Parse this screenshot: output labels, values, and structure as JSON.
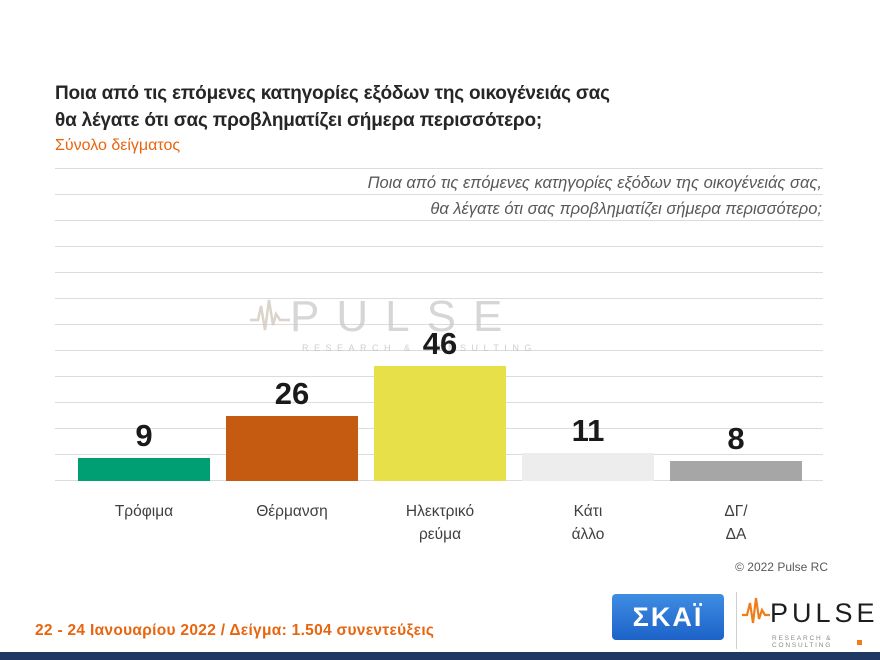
{
  "header": {
    "title_line1": "Ποια από τις επόμενες κατηγορίες εξόδων της οικογένειάς σας",
    "title_line2": "θα λέγατε ότι σας προβληματίζει σήμερα περισσότερο;",
    "subtitle": "Σύνολο δείγματος"
  },
  "overlay_question": {
    "line1": "Ποια από τις επόμενες κατηγορίες εξόδων της οικογένειάς σας,",
    "line2": "θα λέγατε ότι σας προβληματίζει σήμερα περισσότερο;"
  },
  "chart_data": {
    "type": "bar",
    "title": "Σύνολο δείγματος",
    "categories": [
      "Τρόφιμα",
      "Θέρμανση",
      "Ηλεκτρικό ρεύμα",
      "Κάτι άλλο",
      "ΔΓ/ΔΑ"
    ],
    "category_label_lines": [
      [
        "Τρόφιμα"
      ],
      [
        "Θέρμανση"
      ],
      [
        "Ηλεκτρικό",
        "ρεύμα"
      ],
      [
        "Κάτι",
        "άλλο"
      ],
      [
        "ΔΓ/",
        "ΔΑ"
      ]
    ],
    "values": [
      9,
      26,
      46,
      11,
      8
    ],
    "bar_colors": [
      "#009E73",
      "#C55A11",
      "#E7E048",
      "#EDEDED",
      "#A6A6A6"
    ],
    "value_label_color": "#1A1A1A",
    "xlabel": "",
    "ylabel": "",
    "ylim": [
      0,
      125
    ],
    "grid": true,
    "legend": "none"
  },
  "watermark": {
    "brand": "PULSE",
    "tagline": "RESEARCH & CONSULTING"
  },
  "copyright": "© 2022 Pulse RC",
  "footer": {
    "fieldwork": "22 - 24  Ιανουαρίου  2022  /  Δείγμα:  1.504 συνεντεύξεις"
  },
  "logos": {
    "skai_label": "ΣΚΑΪ",
    "pulse_brand": "PULSE",
    "pulse_tagline": "RESEARCH & CONSULTING"
  },
  "colors": {
    "accent_orange": "#E8650F",
    "skai_blue": "#1E6FD2",
    "footer_strip_navy": "#1F3864",
    "gridline": "#DCDCDC"
  }
}
